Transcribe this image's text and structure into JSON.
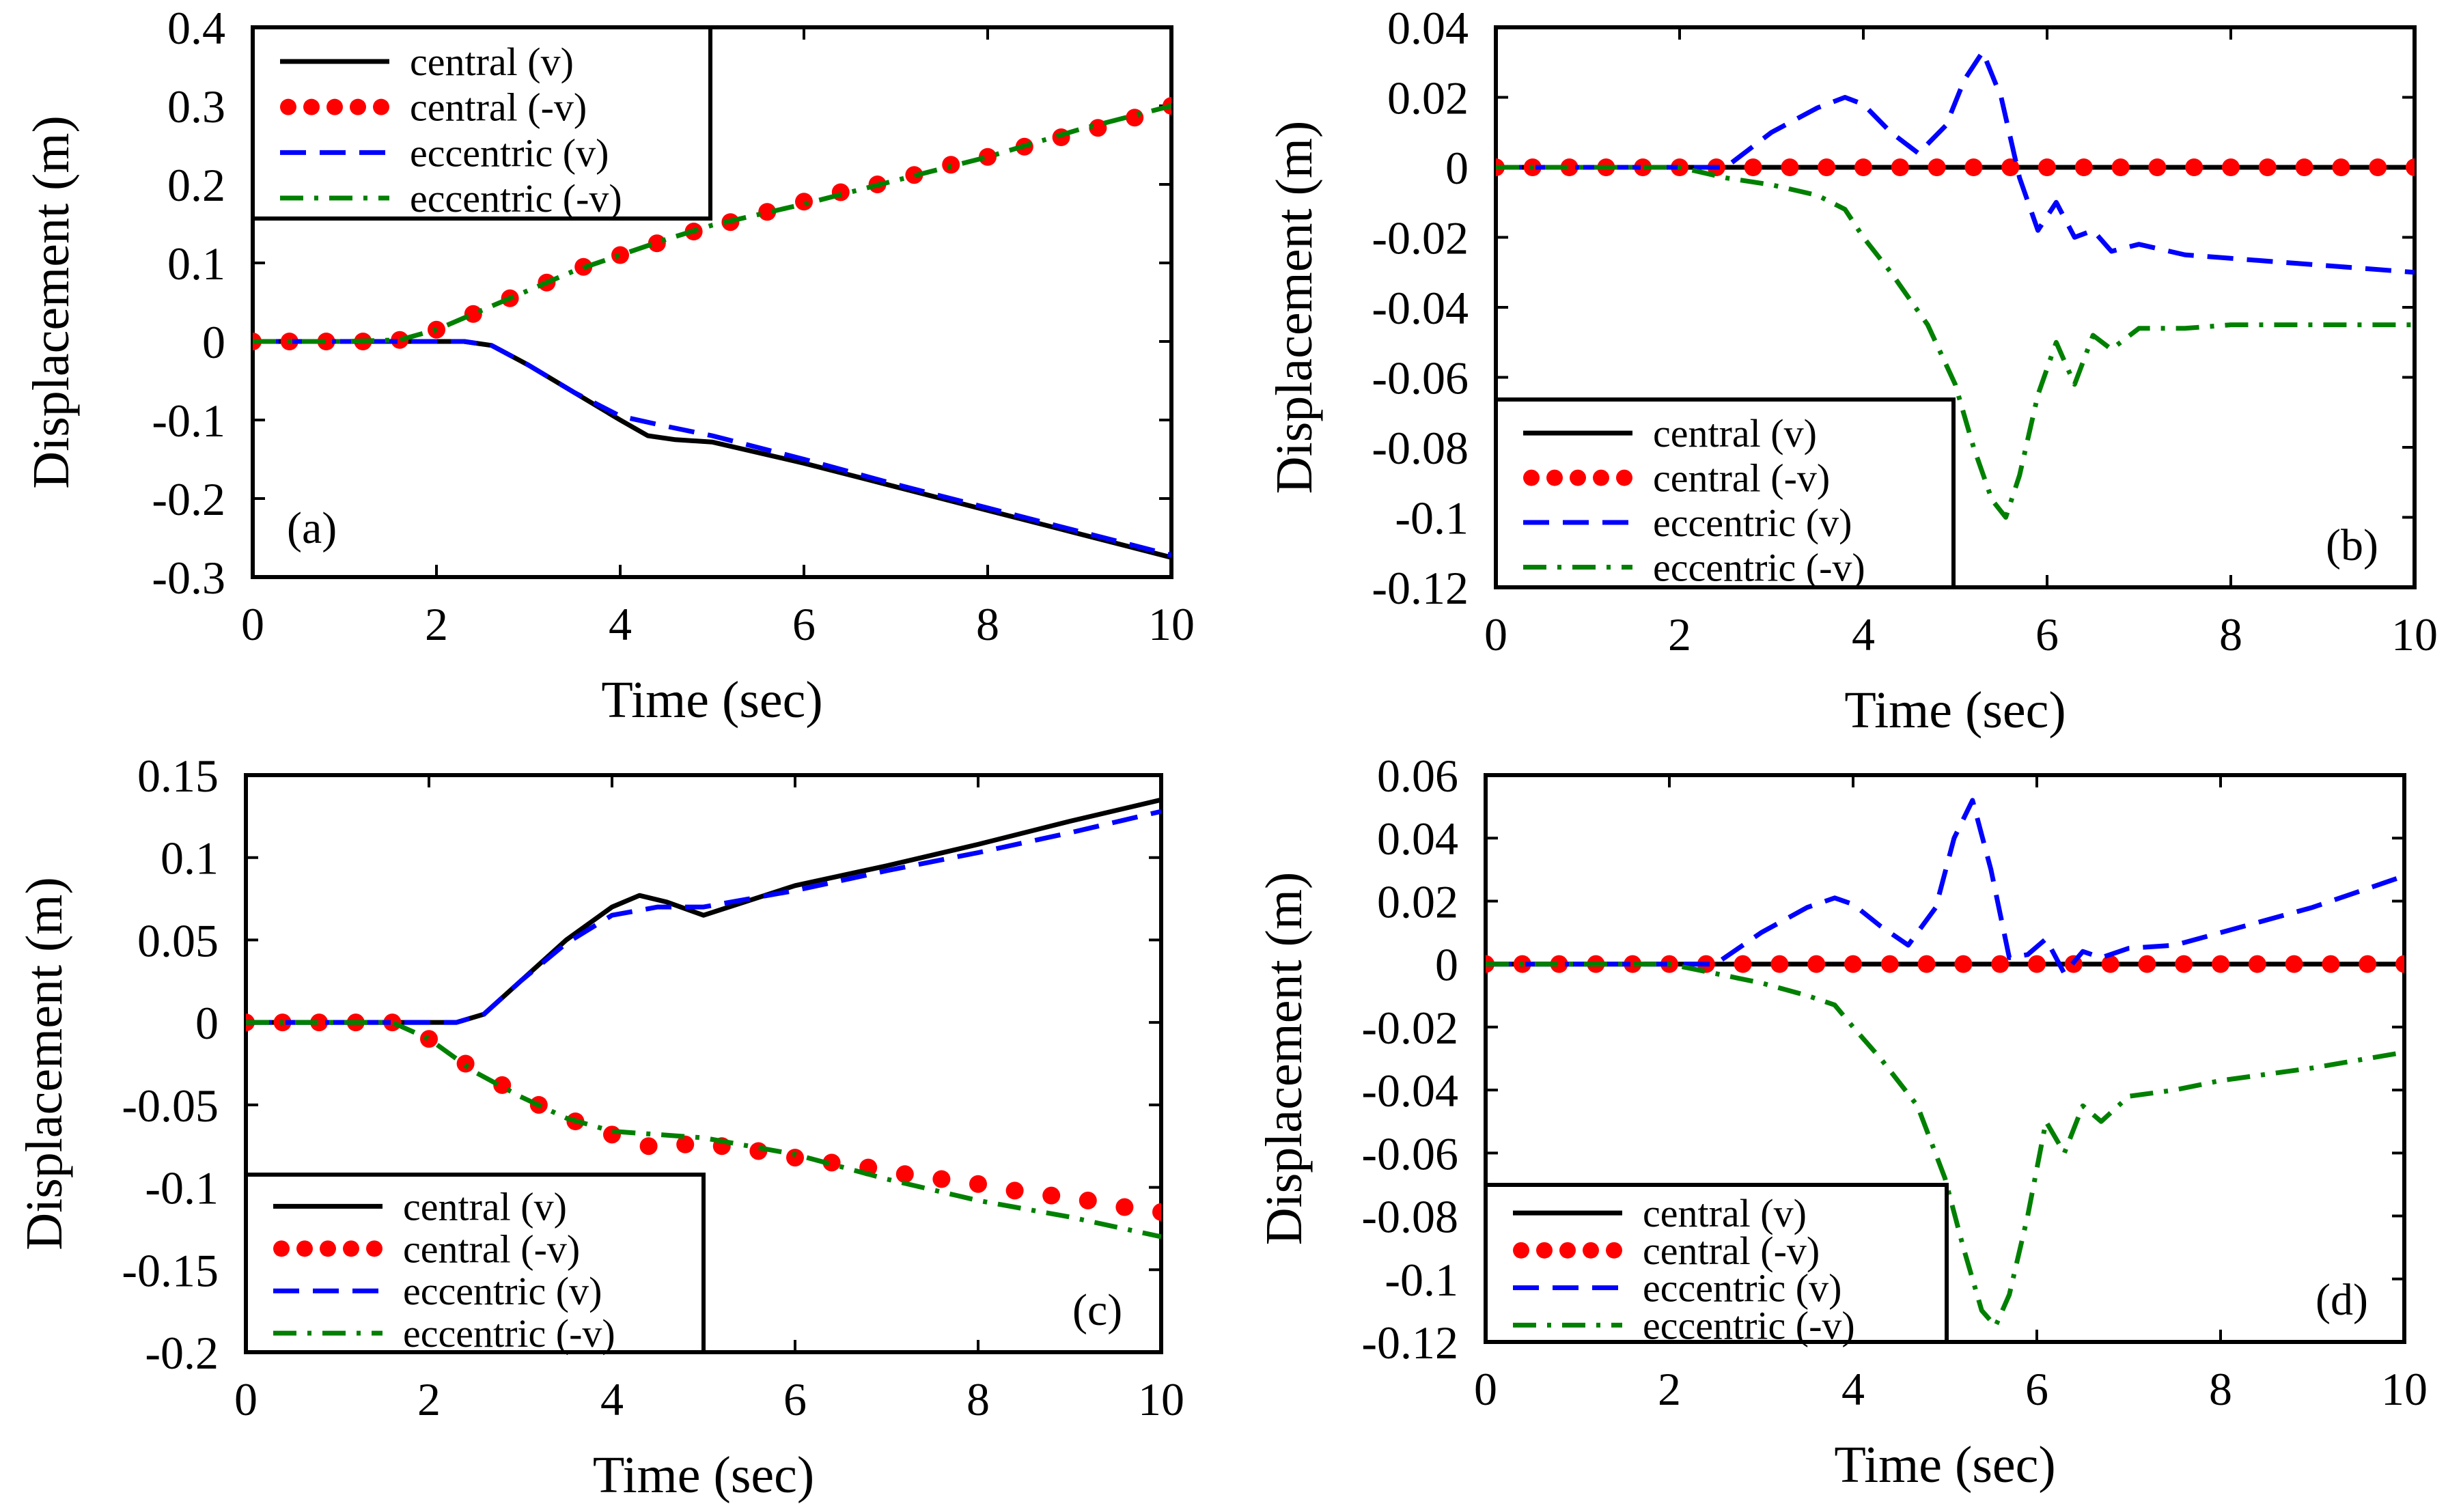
{
  "figure": {
    "caption": ""
  },
  "legend_labels": {
    "central_v": "central (v)",
    "central_neg_v": "central (-v)",
    "eccentric_v": "eccentric (v)",
    "eccentric_neg_v": "eccentric (-v)"
  },
  "series_styles": {
    "central_v": {
      "color": "#000000",
      "style": "solid"
    },
    "central_neg_v": {
      "color": "#ff0000",
      "style": "dots"
    },
    "eccentric_v": {
      "color": "#0000ff",
      "style": "dashed"
    },
    "eccentric_neg_v": {
      "color": "#008000",
      "style": "dashdot"
    }
  },
  "chart_data": [
    {
      "type": "line",
      "panel": "(a)",
      "title": "",
      "xlabel": "Time (sec)",
      "ylabel": "Displacement (m)",
      "xlim": [
        0,
        10
      ],
      "ylim": [
        -0.3,
        0.4
      ],
      "xticks": [
        "0",
        "2",
        "4",
        "6",
        "8",
        "10"
      ],
      "yticks": [
        "-0.3",
        "-0.2",
        "-0.1",
        "0",
        "0.1",
        "0.2",
        "0.3",
        "0.4"
      ],
      "legend": "top-left",
      "tag_position": "bottom-left",
      "series": [
        {
          "key": "central_v",
          "name": "central (v)",
          "x": [
            0,
            1,
            2,
            2.3,
            2.6,
            3,
            3.5,
            4,
            4.3,
            4.6,
            5,
            6,
            7,
            8,
            9,
            10
          ],
          "values": [
            0,
            0,
            0,
            0,
            -0.005,
            -0.03,
            -0.065,
            -0.1,
            -0.12,
            -0.125,
            -0.128,
            -0.155,
            -0.185,
            -0.215,
            -0.245,
            -0.275
          ]
        },
        {
          "key": "central_neg_v",
          "name": "central (-v)",
          "x": [
            0,
            0.4,
            0.8,
            1.2,
            1.6,
            2,
            2.4,
            2.8,
            3.2,
            3.6,
            4,
            4.4,
            4.8,
            5.2,
            5.6,
            6,
            6.4,
            6.8,
            7.2,
            7.6,
            8,
            8.4,
            8.8,
            9.2,
            9.6,
            10
          ],
          "values": [
            0,
            0,
            0,
            0,
            0.002,
            0.015,
            0.035,
            0.055,
            0.075,
            0.095,
            0.11,
            0.125,
            0.14,
            0.152,
            0.165,
            0.178,
            0.19,
            0.2,
            0.212,
            0.225,
            0.235,
            0.248,
            0.26,
            0.272,
            0.285,
            0.3
          ]
        },
        {
          "key": "eccentric_v",
          "name": "eccentric (v)",
          "x": [
            0,
            1,
            2,
            2.3,
            2.6,
            3,
            3.5,
            4,
            4.5,
            5,
            6,
            7,
            8,
            9,
            10
          ],
          "values": [
            0,
            0,
            0,
            0,
            -0.005,
            -0.03,
            -0.065,
            -0.095,
            -0.108,
            -0.12,
            -0.15,
            -0.182,
            -0.212,
            -0.242,
            -0.272
          ]
        },
        {
          "key": "eccentric_neg_v",
          "name": "eccentric (-v)",
          "x": [
            0,
            1,
            1.6,
            2,
            2.5,
            3,
            3.5,
            4,
            4.5,
            5,
            6,
            7,
            8,
            9,
            10
          ],
          "values": [
            0,
            0,
            0.002,
            0.015,
            0.04,
            0.065,
            0.09,
            0.11,
            0.13,
            0.148,
            0.175,
            0.205,
            0.235,
            0.27,
            0.3
          ]
        }
      ]
    },
    {
      "type": "line",
      "panel": "(b)",
      "title": "",
      "xlabel": "Time (sec)",
      "ylabel": "Displacement (m)",
      "xlim": [
        0,
        10
      ],
      "ylim": [
        -0.12,
        0.04
      ],
      "xticks": [
        "0",
        "2",
        "4",
        "6",
        "8",
        "10"
      ],
      "yticks": [
        "-0.12",
        "-0.1",
        "-0.08",
        "-0.06",
        "-0.04",
        "-0.02",
        "0",
        "0.02",
        "0.04"
      ],
      "legend": "bottom-left",
      "tag_position": "bottom-right",
      "series": [
        {
          "key": "central_v",
          "name": "central (v)",
          "x": [
            0,
            10
          ],
          "values": [
            0,
            0
          ]
        },
        {
          "key": "central_neg_v",
          "name": "central (-v)",
          "x": [
            0,
            0.4,
            0.8,
            1.2,
            1.6,
            2,
            2.4,
            2.8,
            3.2,
            3.6,
            4,
            4.4,
            4.8,
            5.2,
            5.6,
            6,
            6.4,
            6.8,
            7.2,
            7.6,
            8,
            8.4,
            8.8,
            9.2,
            9.6,
            10
          ],
          "values": [
            0,
            0,
            0,
            0,
            0,
            0,
            0,
            0,
            0,
            0,
            0,
            0,
            0,
            0,
            0,
            0,
            0,
            0,
            0,
            0,
            0,
            0,
            0,
            0,
            0,
            0
          ]
        },
        {
          "key": "eccentric_v",
          "name": "eccentric (v)",
          "x": [
            0,
            2.5,
            3,
            3.5,
            3.8,
            4,
            4.3,
            4.6,
            4.9,
            5.1,
            5.3,
            5.5,
            5.7,
            5.9,
            6.1,
            6.3,
            6.5,
            6.7,
            7,
            7.5,
            8,
            9,
            10
          ],
          "values": [
            0,
            0,
            0.01,
            0.017,
            0.02,
            0.018,
            0.01,
            0.004,
            0.012,
            0.025,
            0.033,
            0.02,
            -0.003,
            -0.018,
            -0.01,
            -0.02,
            -0.018,
            -0.024,
            -0.022,
            -0.025,
            -0.026,
            -0.028,
            -0.03
          ]
        },
        {
          "key": "eccentric_neg_v",
          "name": "eccentric (-v)",
          "x": [
            0,
            2,
            2.5,
            3,
            3.5,
            3.8,
            4,
            4.3,
            4.7,
            5,
            5.2,
            5.4,
            5.55,
            5.7,
            5.9,
            6.1,
            6.3,
            6.5,
            6.7,
            7,
            7.5,
            8,
            9,
            10
          ],
          "values": [
            0,
            0,
            -0.003,
            -0.005,
            -0.008,
            -0.012,
            -0.02,
            -0.03,
            -0.045,
            -0.062,
            -0.08,
            -0.095,
            -0.1,
            -0.088,
            -0.065,
            -0.05,
            -0.062,
            -0.048,
            -0.052,
            -0.046,
            -0.046,
            -0.045,
            -0.045,
            -0.045
          ]
        }
      ]
    },
    {
      "type": "line",
      "panel": "(c)",
      "title": "",
      "xlabel": "Time (sec)",
      "ylabel": "Displacement (m)",
      "xlim": [
        0,
        10
      ],
      "ylim": [
        -0.2,
        0.15
      ],
      "xticks": [
        "0",
        "2",
        "4",
        "6",
        "8",
        "10"
      ],
      "yticks": [
        "-0.2",
        "-0.15",
        "-0.1",
        "-0.05",
        "0",
        "0.05",
        "0.1",
        "0.15"
      ],
      "legend": "bottom-left",
      "tag_position": "bottom-right",
      "series": [
        {
          "key": "central_v",
          "name": "central (v)",
          "x": [
            0,
            1,
            2,
            2.3,
            2.6,
            3,
            3.5,
            4,
            4.3,
            4.6,
            5,
            6,
            7,
            8,
            9,
            10
          ],
          "values": [
            0,
            0,
            0,
            0,
            0.005,
            0.025,
            0.05,
            0.07,
            0.077,
            0.073,
            0.065,
            0.083,
            0.095,
            0.108,
            0.122,
            0.135
          ]
        },
        {
          "key": "central_neg_v",
          "name": "central (-v)",
          "x": [
            0,
            0.4,
            0.8,
            1.2,
            1.6,
            2,
            2.4,
            2.8,
            3.2,
            3.6,
            4,
            4.4,
            4.8,
            5.2,
            5.6,
            6,
            6.4,
            6.8,
            7.2,
            7.6,
            8,
            8.4,
            8.8,
            9.2,
            9.6,
            10
          ],
          "values": [
            0,
            0,
            0,
            0,
            0,
            -0.01,
            -0.025,
            -0.038,
            -0.05,
            -0.06,
            -0.068,
            -0.075,
            -0.074,
            -0.075,
            -0.078,
            -0.082,
            -0.085,
            -0.088,
            -0.092,
            -0.095,
            -0.098,
            -0.102,
            -0.105,
            -0.108,
            -0.112,
            -0.115
          ]
        },
        {
          "key": "eccentric_v",
          "name": "eccentric (v)",
          "x": [
            0,
            1,
            2,
            2.3,
            2.6,
            3,
            3.5,
            4,
            4.5,
            5,
            6,
            7,
            8,
            9,
            10
          ],
          "values": [
            0,
            0,
            0,
            0,
            0.005,
            0.025,
            0.048,
            0.065,
            0.07,
            0.07,
            0.08,
            0.092,
            0.103,
            0.115,
            0.128
          ]
        },
        {
          "key": "eccentric_neg_v",
          "name": "eccentric (-v)",
          "x": [
            0,
            1,
            1.6,
            2,
            2.5,
            3,
            3.5,
            4,
            4.5,
            5,
            6,
            7,
            8,
            9,
            10
          ],
          "values": [
            0,
            0,
            0,
            -0.01,
            -0.03,
            -0.045,
            -0.058,
            -0.066,
            -0.068,
            -0.07,
            -0.08,
            -0.095,
            -0.108,
            -0.118,
            -0.13
          ]
        }
      ]
    },
    {
      "type": "line",
      "panel": "(d)",
      "title": "",
      "xlabel": "Time (sec)",
      "ylabel": "Displacement (m)",
      "xlim": [
        0,
        10
      ],
      "ylim": [
        -0.12,
        0.06
      ],
      "xticks": [
        "0",
        "2",
        "4",
        "6",
        "8",
        "10"
      ],
      "yticks": [
        "-0.12",
        "-0.1",
        "-0.08",
        "-0.06",
        "-0.04",
        "-0.02",
        "0",
        "0.02",
        "0.04",
        "0.06"
      ],
      "legend": "bottom-left",
      "tag_position": "bottom-right",
      "series": [
        {
          "key": "central_v",
          "name": "central (v)",
          "x": [
            0,
            10
          ],
          "values": [
            0,
            0
          ]
        },
        {
          "key": "central_neg_v",
          "name": "central (-v)",
          "x": [
            0,
            0.4,
            0.8,
            1.2,
            1.6,
            2,
            2.4,
            2.8,
            3.2,
            3.6,
            4,
            4.4,
            4.8,
            5.2,
            5.6,
            6,
            6.4,
            6.8,
            7.2,
            7.6,
            8,
            8.4,
            8.8,
            9.2,
            9.6,
            10
          ],
          "values": [
            0,
            0,
            0,
            0,
            0,
            0,
            0,
            0,
            0,
            0,
            0,
            0,
            0,
            0,
            0,
            0,
            0,
            0,
            0,
            0,
            0,
            0,
            0,
            0,
            0,
            0
          ]
        },
        {
          "key": "eccentric_v",
          "name": "eccentric (v)",
          "x": [
            0,
            2.5,
            3,
            3.5,
            3.8,
            4,
            4.3,
            4.6,
            4.9,
            5.1,
            5.3,
            5.5,
            5.7,
            5.9,
            6.1,
            6.3,
            6.5,
            6.7,
            7,
            7.5,
            8,
            9,
            10
          ],
          "values": [
            0,
            0,
            0.01,
            0.018,
            0.021,
            0.019,
            0.012,
            0.006,
            0.018,
            0.04,
            0.052,
            0.03,
            0.002,
            0.003,
            0.008,
            -0.003,
            0.004,
            0.002,
            0.005,
            0.006,
            0.01,
            0.018,
            0.028
          ]
        },
        {
          "key": "eccentric_neg_v",
          "name": "eccentric (-v)",
          "x": [
            0,
            2,
            2.5,
            3,
            3.5,
            3.8,
            4,
            4.3,
            4.7,
            5,
            5.2,
            5.4,
            5.55,
            5.7,
            5.9,
            6.1,
            6.3,
            6.5,
            6.7,
            7,
            7.5,
            8,
            9,
            10
          ],
          "values": [
            0,
            0,
            -0.003,
            -0.006,
            -0.01,
            -0.013,
            -0.02,
            -0.03,
            -0.045,
            -0.068,
            -0.09,
            -0.11,
            -0.115,
            -0.105,
            -0.08,
            -0.05,
            -0.06,
            -0.045,
            -0.05,
            -0.042,
            -0.04,
            -0.037,
            -0.033,
            -0.028
          ]
        }
      ]
    }
  ]
}
